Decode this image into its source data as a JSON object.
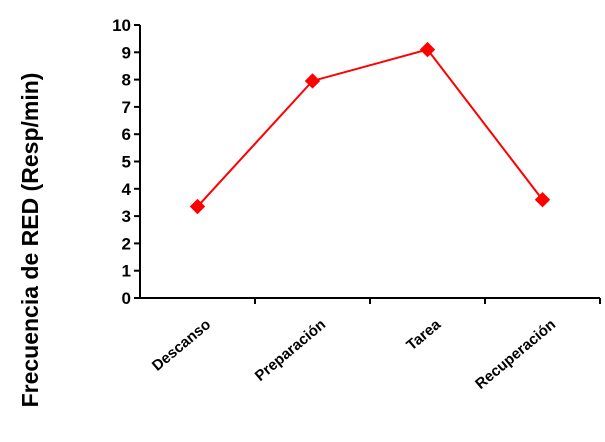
{
  "chart_data": {
    "type": "line",
    "title": "",
    "xlabel": "",
    "ylabel": "Frecuencia de RED (Resp/min)",
    "categories": [
      "Descanso",
      "Preparación",
      "Tarea",
      "Recuperación"
    ],
    "series": [
      {
        "values": [
          3.35,
          7.95,
          9.1,
          3.6
        ],
        "color": "#ff0000",
        "marker": "diamond"
      }
    ],
    "ylim": [
      0,
      10
    ],
    "yticks": [
      "0",
      "1",
      "2",
      "3",
      "4",
      "5",
      "6",
      "7",
      "8",
      "9",
      "10"
    ],
    "grid": false,
    "legend": "none"
  }
}
